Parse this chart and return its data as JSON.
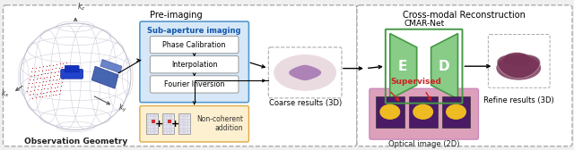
{
  "bg_color": "#f0f0f0",
  "left_panel_title": "Pre-imaging",
  "right_panel_title": "Cross-modal Reconstruction",
  "obs_geometry_label": "Observation Geometry",
  "sub_aperture_label": "Sub-aperture imaging",
  "phase_cal_label": "Phase Calibration",
  "interpolation_label": "Interpolation",
  "fourier_label": "Fourier Inversion",
  "non_coherent_label": "Non-coherent\naddition",
  "coarse_label": "Coarse results (3D)",
  "cmar_label": "CMAR-Net",
  "encoder_label": "E",
  "decoder_label": "D",
  "supervised_label": "Supervised",
  "optical_label": "Optical image (2D)",
  "refine_label": "Refine results (3D)",
  "sub_aperture_fill": "#d6e8f8",
  "sub_aperture_border": "#5599cc",
  "non_coherent_fill": "#fdf0d0",
  "non_coherent_border": "#ddaa44",
  "encoder_fill": "#77bb77",
  "decoder_fill": "#99cc99",
  "optical_border": "#cc88bb",
  "optical_fill": "#cc88bb",
  "supervised_color": "#cc2222",
  "supervised_arrow_color": "#cc2222",
  "arrow_color": "#111111",
  "panel_dash_color": "#aaaaaa",
  "refine_car_color": "#773355",
  "coarse_blob_color": "#aa7788"
}
